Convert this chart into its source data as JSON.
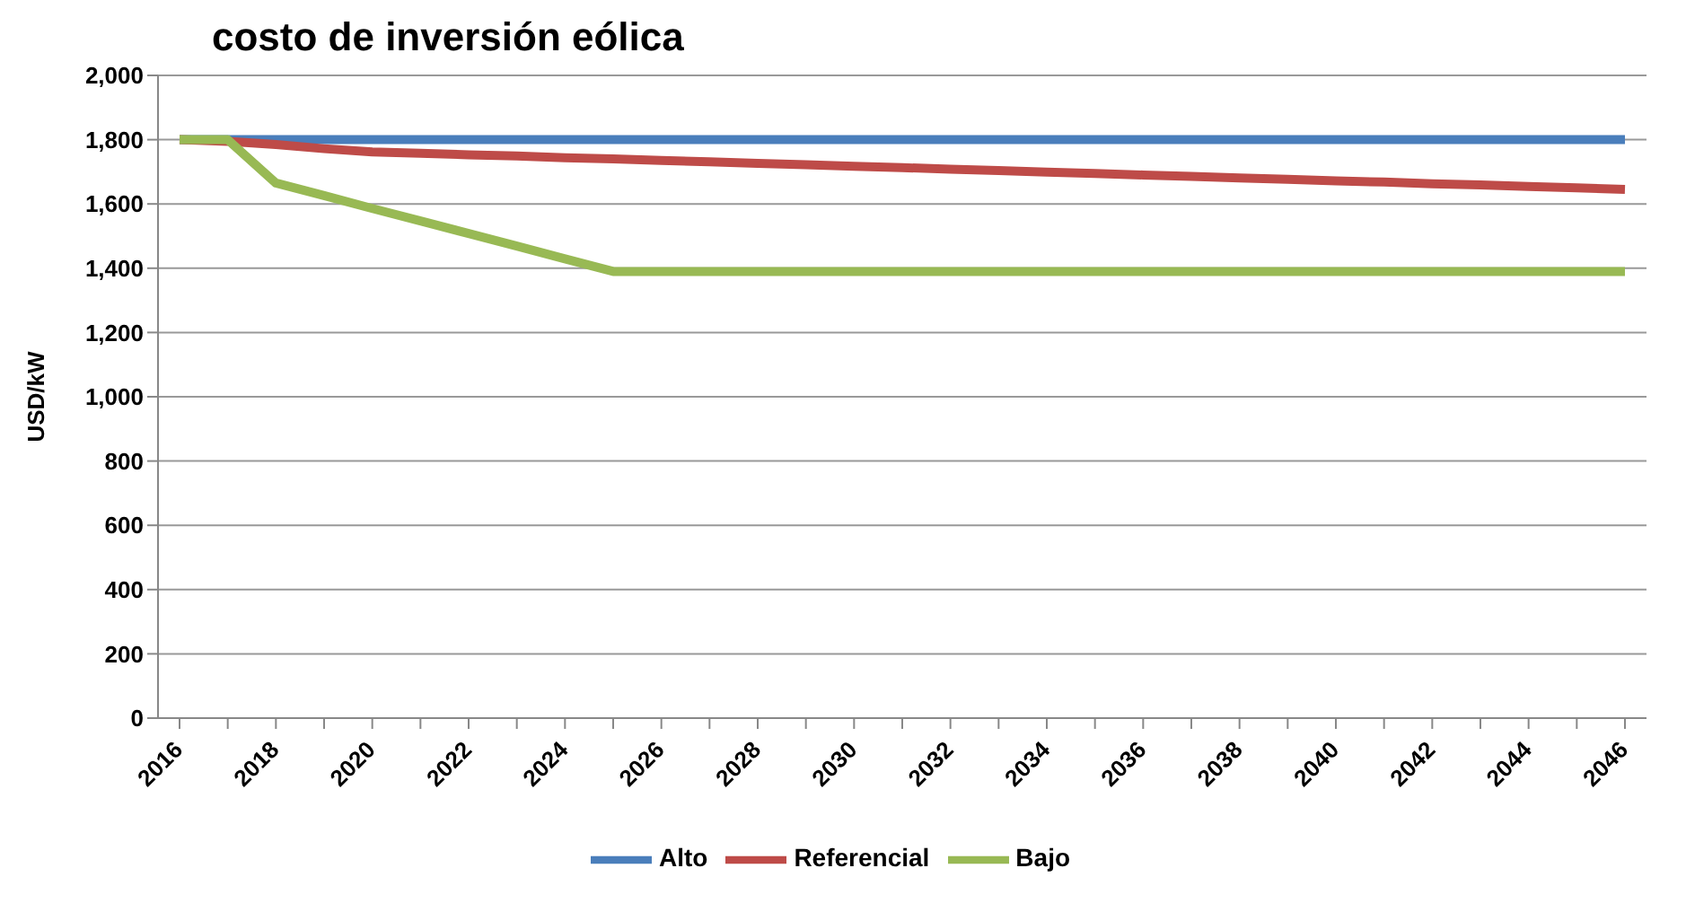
{
  "chart_data": {
    "type": "line",
    "title": "costo de inversión eólica",
    "ylabel": "USD/kW",
    "categories": [
      "2016",
      null,
      "2018",
      null,
      "2020",
      null,
      "2022",
      null,
      "2024",
      null,
      "2026",
      null,
      "2028",
      null,
      "2030",
      null,
      "2032",
      null,
      "2034",
      null,
      "2036",
      null,
      "2038",
      null,
      "2040",
      null,
      "2042",
      null,
      "2044",
      null,
      "2046"
    ],
    "series": [
      {
        "name": "Alto",
        "color": "#4a7ebb",
        "values": [
          1800,
          1800,
          1800,
          1800,
          1800,
          1800,
          1800,
          1800,
          1800,
          1800,
          1800,
          1800,
          1800,
          1800,
          1800,
          1800,
          1800,
          1800,
          1800,
          1800,
          1800,
          1800,
          1800,
          1800,
          1800,
          1800,
          1800,
          1800,
          1800,
          1800,
          1800
        ]
      },
      {
        "name": "Referencial",
        "color": "#be4b48",
        "values": [
          1800,
          1795,
          1785,
          1772,
          1762,
          1758,
          1753,
          1749,
          1744,
          1740,
          1735,
          1731,
          1726,
          1722,
          1717,
          1713,
          1708,
          1704,
          1699,
          1695,
          1690,
          1686,
          1681,
          1677,
          1672,
          1668,
          1663,
          1659,
          1654,
          1650,
          1645
        ]
      },
      {
        "name": "Bajo",
        "color": "#98b954",
        "values": [
          1800,
          1800,
          1665,
          1626,
          1586,
          1547,
          1508,
          1469,
          1429,
          1390,
          1390,
          1390,
          1390,
          1390,
          1390,
          1390,
          1390,
          1390,
          1390,
          1390,
          1390,
          1390,
          1390,
          1390,
          1390,
          1390,
          1390,
          1390,
          1390,
          1390,
          1390
        ]
      }
    ],
    "ylim": [
      0,
      2000
    ],
    "yticks": [
      {
        "value": 0,
        "label": "0"
      },
      {
        "value": 200,
        "label": "200"
      },
      {
        "value": 400,
        "label": "400"
      },
      {
        "value": 600,
        "label": "600"
      },
      {
        "value": 800,
        "label": "800"
      },
      {
        "value": 1000,
        "label": "1,000"
      },
      {
        "value": 1200,
        "label": "1,200"
      },
      {
        "value": 1400,
        "label": "1,400"
      },
      {
        "value": 1600,
        "label": "1,600"
      },
      {
        "value": 1800,
        "label": "1,800"
      },
      {
        "value": 2000,
        "label": "2,000"
      }
    ],
    "grid": "y",
    "legend": "bottom",
    "marker": "none",
    "line_style": "solid"
  }
}
